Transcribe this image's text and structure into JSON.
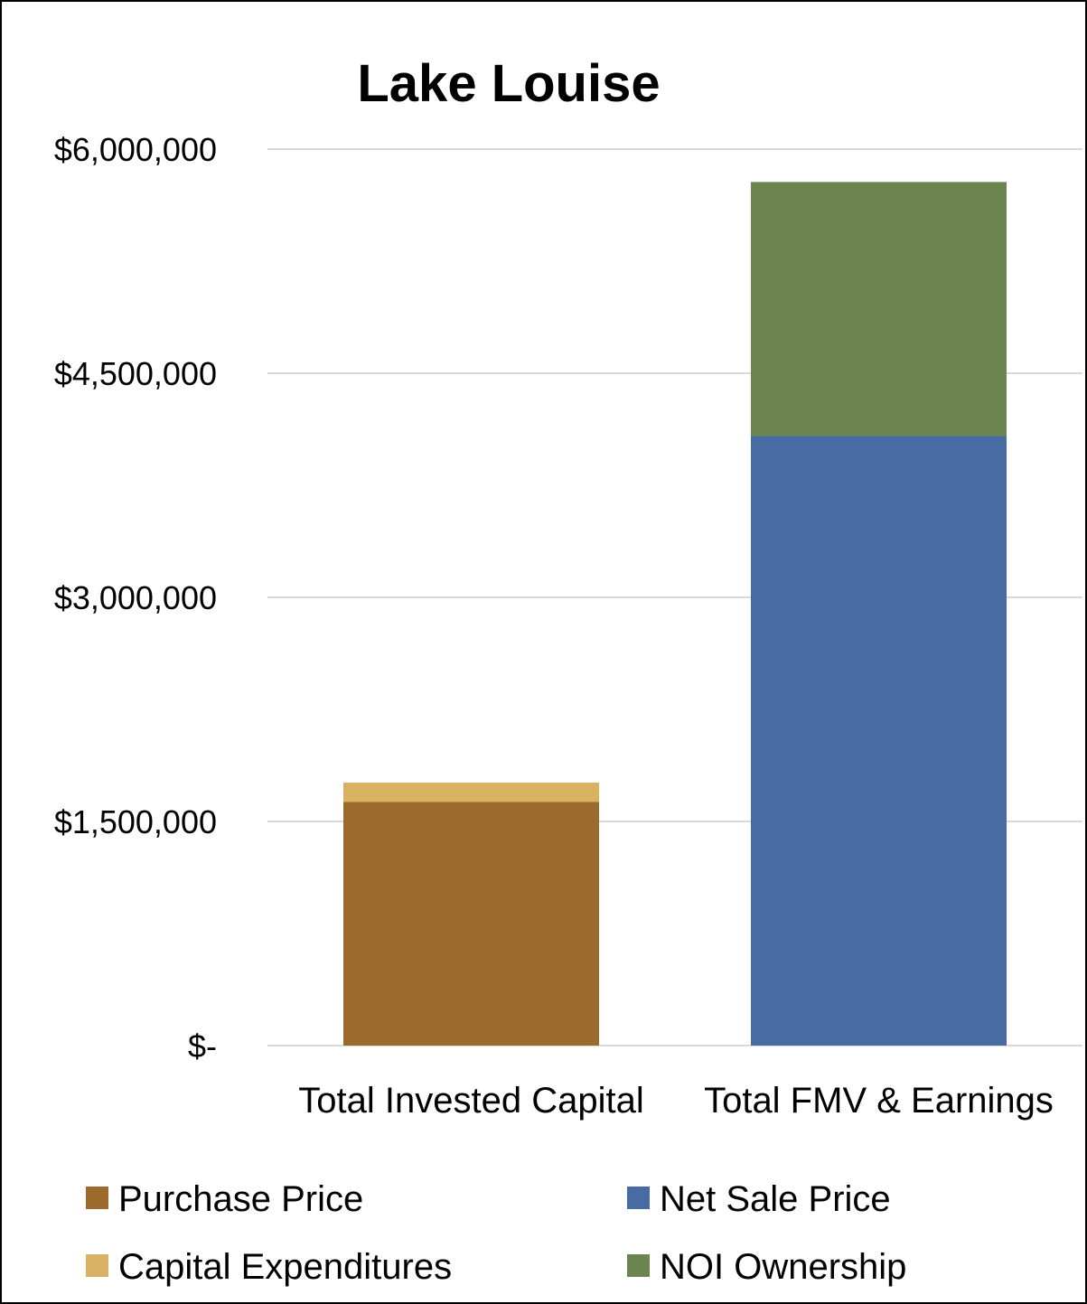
{
  "chart_data": {
    "type": "bar",
    "stacked": true,
    "title": "Lake Louise",
    "categories": [
      "Total Invested Capital",
      "Total FMV & Earnings"
    ],
    "series": [
      {
        "name": "Purchase Price",
        "values": [
          1630000,
          0
        ],
        "color": "#9c6a2c"
      },
      {
        "name": "Capital Expenditures",
        "values": [
          130000,
          0
        ],
        "color": "#d9b162"
      },
      {
        "name": "Net Sale Price",
        "values": [
          0,
          4080000
        ],
        "color": "#486ba3"
      },
      {
        "name": "NOI Ownership",
        "values": [
          0,
          1700000
        ],
        "color": "#6b8450"
      }
    ],
    "yticks": [
      {
        "value": 0,
        "label": "$-"
      },
      {
        "value": 1500000,
        "label": "$1,500,000"
      },
      {
        "value": 3000000,
        "label": "$3,000,000"
      },
      {
        "value": 4500000,
        "label": "$4,500,000"
      },
      {
        "value": 6000000,
        "label": "$6,000,000"
      }
    ],
    "ylim": [
      0,
      6000000
    ],
    "grid": true,
    "legend_position": "bottom"
  }
}
